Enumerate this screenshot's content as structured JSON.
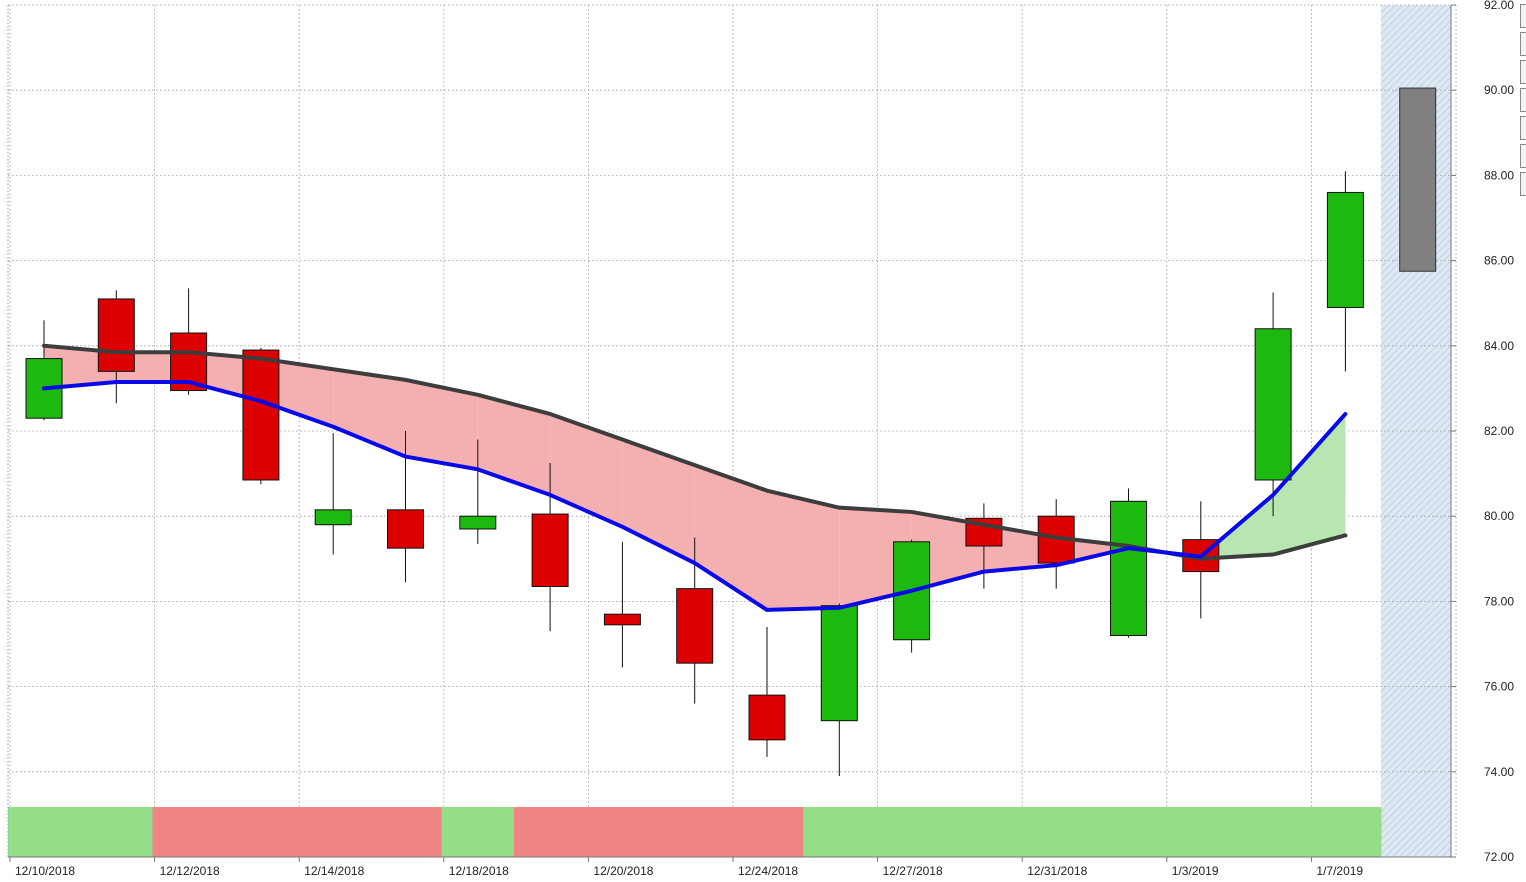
{
  "chart_data": {
    "type": "candlestick",
    "title": "",
    "xlabel": "",
    "ylabel": "",
    "ylim": [
      72,
      92
    ],
    "y_ticks": [
      "72.00",
      "74.00",
      "76.00",
      "78.00",
      "80.00",
      "82.00",
      "84.00",
      "86.00",
      "88.00",
      "90.00",
      "92.00"
    ],
    "x_tick_labels": [
      "12/10/2018",
      "12/12/2018",
      "12/14/2018",
      "12/18/2018",
      "12/20/2018",
      "12/24/2018",
      "12/27/2018",
      "12/31/2018",
      "1/3/2019",
      "1/7/2019"
    ],
    "candles": [
      {
        "open": 82.3,
        "close": 83.7,
        "high": 84.6,
        "low": 82.25
      },
      {
        "open": 85.1,
        "close": 83.4,
        "high": 85.3,
        "low": 82.65
      },
      {
        "open": 84.3,
        "close": 82.95,
        "high": 85.35,
        "low": 82.85
      },
      {
        "open": 83.9,
        "close": 80.85,
        "high": 83.95,
        "low": 80.75
      },
      {
        "open": 79.8,
        "close": 80.15,
        "high": 81.95,
        "low": 79.1
      },
      {
        "open": 80.15,
        "close": 79.25,
        "high": 82.0,
        "low": 78.45
      },
      {
        "open": 79.7,
        "close": 80.0,
        "high": 81.8,
        "low": 79.35
      },
      {
        "open": 80.05,
        "close": 78.35,
        "high": 81.25,
        "low": 77.3
      },
      {
        "open": 77.7,
        "close": 77.45,
        "high": 79.4,
        "low": 76.45
      },
      {
        "open": 78.3,
        "close": 76.55,
        "high": 79.5,
        "low": 75.6
      },
      {
        "open": 75.8,
        "close": 74.75,
        "high": 77.4,
        "low": 74.35
      },
      {
        "open": 75.2,
        "close": 77.9,
        "high": 77.95,
        "low": 73.9
      },
      {
        "open": 77.1,
        "close": 79.4,
        "high": 79.45,
        "low": 76.8
      },
      {
        "open": 79.95,
        "close": 79.3,
        "high": 80.3,
        "low": 78.3
      },
      {
        "open": 80.0,
        "close": 78.9,
        "high": 80.4,
        "low": 78.3
      },
      {
        "open": 77.2,
        "close": 80.35,
        "high": 80.65,
        "low": 77.15
      },
      {
        "open": 79.45,
        "close": 78.7,
        "high": 80.35,
        "low": 77.6
      },
      {
        "open": 80.85,
        "close": 84.4,
        "high": 85.25,
        "low": 80.0
      },
      {
        "open": 84.9,
        "close": 87.6,
        "high": 88.1,
        "low": 83.4
      }
    ],
    "projected_bar": {
      "top": 90.05,
      "bottom": 85.75
    },
    "series": [
      {
        "color": "#3d3d3d",
        "values": [
          84.0,
          83.85,
          83.85,
          83.7,
          83.45,
          83.2,
          82.85,
          82.4,
          81.8,
          81.2,
          80.6,
          80.2,
          80.1,
          79.8,
          79.5,
          79.3,
          79.0,
          79.1,
          79.55
        ]
      },
      {
        "color": "#0a0ae6",
        "values": [
          83.0,
          83.15,
          83.15,
          82.7,
          82.1,
          81.4,
          81.1,
          80.5,
          79.75,
          78.9,
          77.8,
          77.85,
          78.25,
          78.7,
          78.85,
          79.25,
          79.05,
          80.5,
          82.4
        ]
      }
    ],
    "signal_bar": [
      "up",
      "up",
      "down",
      "down",
      "down",
      "down",
      "up",
      "down",
      "down",
      "down",
      "down",
      "up",
      "up",
      "up",
      "up",
      "up",
      "up",
      "up",
      "up"
    ],
    "colors": {
      "up_candle": "#1db90f",
      "down_candle": "#dd0000",
      "bearish_fill": "#f4b0b0",
      "bullish_fill": "#b8e6b0",
      "signal_up": "#96dd88",
      "signal_down": "#ef8585",
      "projection": "#808080",
      "grid": "#9a9a9a",
      "forecast_zone": "#dbe6f1"
    }
  }
}
